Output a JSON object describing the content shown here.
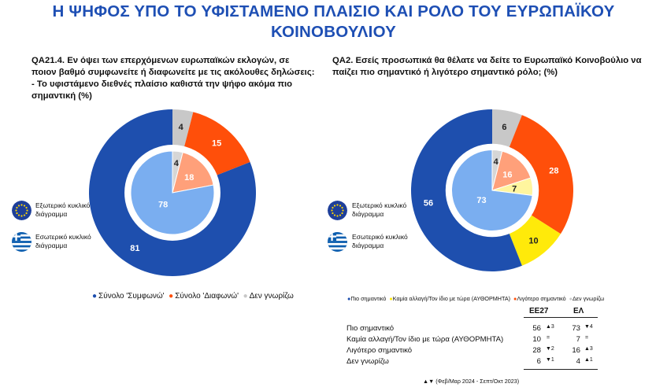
{
  "title": {
    "line1": "Η ΨΗΦΟΣ ΥΠΟ ΤΟ ΥΦΙΣΤΑΜΕΝΟ ΠΛΑΙΣΙΟ ΚΑΙ ΡΟΛΟ ΤΟΥ ΕΥΡΩΠΑΪΚΟΥ",
    "line2": "ΚΟΙΝΟΒΟΥΛΙΟΥ"
  },
  "questions": {
    "q1": "QA21.4. Εν όψει των επερχόμενων ευρωπαϊκών εκλογών, σε ποιον βαθμό συμφωνείτε ή διαφωνείτε με τις ακόλουθες δηλώσεις: - Το υφιστάμενο διεθνές πλαίσιο καθιστά την ψήφο ακόμα πιο σημαντική (%)",
    "q2": "QA2. Εσείς προσωπικά θα θέλατε να δείτε το Ευρωπαϊκό Κοινοβούλιο να παίζει πιο σημαντικό ή λιγότερο σημαντικό ρόλο; (%)"
  },
  "side_legend": {
    "outer": "Εξωτερικό κυκλικό διάγραμμα",
    "inner": "Εσωτερικό κυκλικό διάγραμμα",
    "outer_icon": "eu-flag-icon",
    "inner_icon": "greek-flag-icon"
  },
  "colors": {
    "title": "#1e4fb4",
    "blue_dark": "#1e4fae",
    "blue_light": "#7aaef0",
    "orange_dark": "#ff4f0a",
    "orange_light": "#ffa07a",
    "grey_dark": "#c8c8c8",
    "grey_light": "#d6d6d6",
    "yellow_dark": "#ffea0a",
    "yellow_light": "#fff59e"
  },
  "legend1": {
    "items": [
      {
        "label": "Σύνολο 'Συμφωνώ'",
        "color": "#1e4fae"
      },
      {
        "label": "Σύνολο 'Διαφωνώ'",
        "color": "#ff4f0a"
      },
      {
        "label": "Δεν γνωρίζω",
        "color": "#c8c8c8"
      }
    ]
  },
  "legend2": {
    "items": [
      {
        "label": "Πιο σημαντικό",
        "color": "#1e4fae"
      },
      {
        "label": "Καμία αλλαγή/Τον ίδιο με τώρα (ΑΥΘΟΡΜΗΤΑ)",
        "color": "#ffea0a"
      },
      {
        "label": "Λιγότερο σημαντικό",
        "color": "#ff4f0a"
      },
      {
        "label": "Δεν γνωρίζω",
        "color": "#c8c8c8"
      }
    ]
  },
  "chart_data": [
    {
      "type": "donut",
      "name": "QA21.4",
      "categories": [
        "Σύνολο 'Συμφωνώ'",
        "Σύνολο 'Διαφωνώ'",
        "Δεν γνωρίζω"
      ],
      "series": [
        {
          "name": "Εξωτερικό κυκλικό διάγραμμα",
          "values": [
            81,
            15,
            4
          ]
        },
        {
          "name": "Εσωτερικό κυκλικό διάγραμμα",
          "values": [
            78,
            18,
            4
          ]
        }
      ]
    },
    {
      "type": "donut",
      "name": "QA2",
      "categories": [
        "Πιο σημαντικό",
        "Καμία αλλαγή/Τον ίδιο με τώρα (ΑΥΘΟΡΜΗΤΑ)",
        "Λιγότερο σημαντικό",
        "Δεν γνωρίζω"
      ],
      "series": [
        {
          "name": "Εξωτερικό κυκλικό διάγραμμα",
          "values": [
            56,
            10,
            28,
            6
          ]
        },
        {
          "name": "Εσωτερικό κυκλικό διάγραμμα",
          "values": [
            73,
            7,
            16,
            4
          ]
        }
      ]
    }
  ],
  "table": {
    "headers": [
      "ΕΕ27",
      "ΕΛ"
    ],
    "rows": [
      {
        "label": "Πιο σημαντικό",
        "eu": "56",
        "eu_change": "▲3",
        "gr": "73",
        "gr_change": "▼4"
      },
      {
        "label": "Καμία αλλαγή/Τον ίδιο με τώρα (ΑΥΘΟΡΜΗΤΑ)",
        "eu": "10",
        "eu_change": "=",
        "gr": "7",
        "gr_change": "="
      },
      {
        "label": "Λιγότερο σημαντικό",
        "eu": "28",
        "eu_change": "▼2",
        "gr": "16",
        "gr_change": "▲3"
      },
      {
        "label": "Δεν γνωρίζω",
        "eu": "6",
        "eu_change": "▼1",
        "gr": "4",
        "gr_change": "▲1"
      }
    ],
    "footnote": "▲▼ (Φεβ/Μαρ 2024 - Σεπτ/Οκτ 2023)"
  }
}
